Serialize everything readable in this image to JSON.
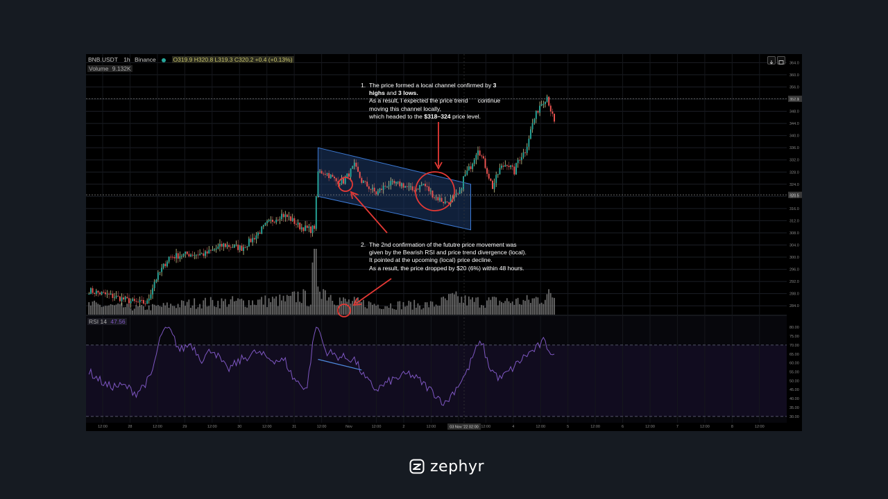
{
  "header": {
    "symbol": "BNB.USDT",
    "interval": "1h",
    "exchange": "Binance",
    "ohlc": "O319.9  H320.8  L319.3  C320.2  +0.4 (+0.13%)",
    "volume_label": "Volume",
    "volume_value": "9.132K",
    "rsi_label": "RSI 14",
    "rsi_value": "47.56"
  },
  "annotations": {
    "note1": {
      "number": "1.",
      "line1_pre": "The price formed a local channel confirmed by ",
      "line1_bold": "3",
      "line2_bold_a": "highs",
      "line2_mid": " and ",
      "line2_bold_b": "3 lows.",
      "line3": "As a result, I expected the price trend      continue",
      "line4": "moving this channel locally,",
      "line5_pre": "which headed to the ",
      "line5_bold": "$318–324",
      "line5_post": " price level."
    },
    "note2": {
      "number": "2.",
      "line1": "The 2nd confirmation of the fututre price movement was",
      "line2": "given by the Bearish RSI and price trend divergence (local).",
      "line3": "It pointed at the upcoming (local) price decline.",
      "line4": "As a result, the price dropped by $20 (6%) within 48 hours."
    }
  },
  "chart_data": {
    "type": "candlestick",
    "symbol": "BNB.USDT",
    "interval": "1h",
    "price_axis": {
      "ticks": [
        "364.0",
        "360.0",
        "356.0",
        "352.0",
        "348.0",
        "344.0",
        "340.0",
        "336.0",
        "332.0",
        "328.0",
        "324.0",
        "320.0",
        "316.0",
        "312.0",
        "308.0",
        "304.0",
        "300.0",
        "296.0",
        "292.0",
        "288.0",
        "284.0"
      ],
      "ylim": [
        282,
        365
      ],
      "markers": [
        {
          "value": 352.1,
          "label": "352.1"
        },
        {
          "value": 320.5,
          "label": "320.5"
        }
      ]
    },
    "rsi_axis": {
      "ticks": [
        "80.00",
        "75.00",
        "70.00",
        "65.00",
        "60.00",
        "55.00",
        "50.00",
        "45.00",
        "40.00",
        "35.00",
        "30.00"
      ],
      "ylim": [
        28,
        82
      ],
      "upper_band": 70,
      "lower_band": 30
    },
    "time_axis": {
      "labels": [
        "12:00",
        "28",
        "12:00",
        "29",
        "12:00",
        "30",
        "12:00",
        "31",
        "12:00",
        "Nov",
        "12:00",
        "2",
        "12:00",
        "",
        "12:00",
        "4",
        "12:00",
        "5",
        "12:00",
        "6",
        "12:00",
        "7",
        "12:00",
        "8",
        "12:00"
      ],
      "cursor_label": "03 Nov '22   02:00"
    },
    "price_keypoints": [
      [
        0,
        289
      ],
      [
        14,
        287
      ],
      [
        26,
        285
      ],
      [
        32,
        285
      ],
      [
        36,
        292
      ],
      [
        44,
        300
      ],
      [
        54,
        301
      ],
      [
        64,
        301
      ],
      [
        74,
        304
      ],
      [
        84,
        303
      ],
      [
        90,
        306
      ],
      [
        98,
        311
      ],
      [
        106,
        314
      ],
      [
        110,
        313
      ],
      [
        116,
        310
      ],
      [
        122,
        309
      ],
      [
        124,
        310
      ],
      [
        126,
        328
      ],
      [
        130,
        328
      ],
      [
        136,
        325
      ],
      [
        140,
        325
      ],
      [
        146,
        330
      ],
      [
        150,
        325
      ],
      [
        158,
        321
      ],
      [
        164,
        324
      ],
      [
        172,
        324
      ],
      [
        178,
        322
      ],
      [
        184,
        324
      ],
      [
        190,
        320
      ],
      [
        196,
        318
      ],
      [
        200,
        319
      ],
      [
        204,
        321
      ],
      [
        206,
        326
      ],
      [
        210,
        330
      ],
      [
        214,
        336
      ],
      [
        218,
        330
      ],
      [
        222,
        323
      ],
      [
        226,
        329
      ],
      [
        230,
        331
      ],
      [
        234,
        328
      ],
      [
        236,
        332
      ],
      [
        240,
        335
      ],
      [
        244,
        344
      ],
      [
        248,
        350
      ],
      [
        252,
        353
      ],
      [
        256,
        344
      ]
    ],
    "volume_keypoints": [
      [
        0,
        0.15
      ],
      [
        30,
        0.1
      ],
      [
        60,
        0.18
      ],
      [
        90,
        0.2
      ],
      [
        110,
        0.22
      ],
      [
        116,
        0.3
      ],
      [
        122,
        0.2
      ],
      [
        124,
        0.9
      ],
      [
        126,
        0.55
      ],
      [
        130,
        0.35
      ],
      [
        140,
        0.2
      ],
      [
        160,
        0.15
      ],
      [
        190,
        0.15
      ],
      [
        200,
        0.25
      ],
      [
        210,
        0.2
      ],
      [
        240,
        0.2
      ],
      [
        256,
        0.3
      ]
    ],
    "rsi_keypoints": [
      [
        0,
        55
      ],
      [
        10,
        47
      ],
      [
        20,
        47
      ],
      [
        26,
        43
      ],
      [
        34,
        52
      ],
      [
        40,
        77
      ],
      [
        44,
        79
      ],
      [
        50,
        67
      ],
      [
        56,
        71
      ],
      [
        62,
        62
      ],
      [
        68,
        68
      ],
      [
        76,
        56
      ],
      [
        84,
        62
      ],
      [
        92,
        66
      ],
      [
        100,
        62
      ],
      [
        108,
        61
      ],
      [
        112,
        52
      ],
      [
        116,
        48
      ],
      [
        120,
        46
      ],
      [
        124,
        78
      ],
      [
        126,
        80
      ],
      [
        130,
        67
      ],
      [
        136,
        64
      ],
      [
        140,
        63
      ],
      [
        146,
        62
      ],
      [
        152,
        51
      ],
      [
        158,
        45
      ],
      [
        166,
        50
      ],
      [
        176,
        54
      ],
      [
        182,
        50
      ],
      [
        190,
        43
      ],
      [
        196,
        37
      ],
      [
        202,
        46
      ],
      [
        208,
        55
      ],
      [
        212,
        66
      ],
      [
        216,
        72
      ],
      [
        220,
        58
      ],
      [
        226,
        51
      ],
      [
        232,
        56
      ],
      [
        240,
        64
      ],
      [
        246,
        68
      ],
      [
        250,
        72
      ],
      [
        256,
        64
      ]
    ],
    "channel": {
      "upper": [
        [
          126,
          336
        ],
        [
          210,
          324
        ]
      ],
      "lower": [
        [
          126,
          320
        ],
        [
          210,
          309
        ]
      ]
    },
    "divergence_line": [
      [
        126,
        62
      ],
      [
        150,
        56
      ]
    ]
  },
  "brand": {
    "name": "zephyr"
  },
  "colors": {
    "background": "#161b22",
    "chart_bg": "#000000",
    "up": "#26a69a",
    "down": "#ef5350",
    "wick_up": "#e5e5a0",
    "rsi": "#7e57c2",
    "channel_fill": "#1e3a6a",
    "channel_stroke": "#3d7bd6",
    "annotation_red": "#e53935"
  }
}
